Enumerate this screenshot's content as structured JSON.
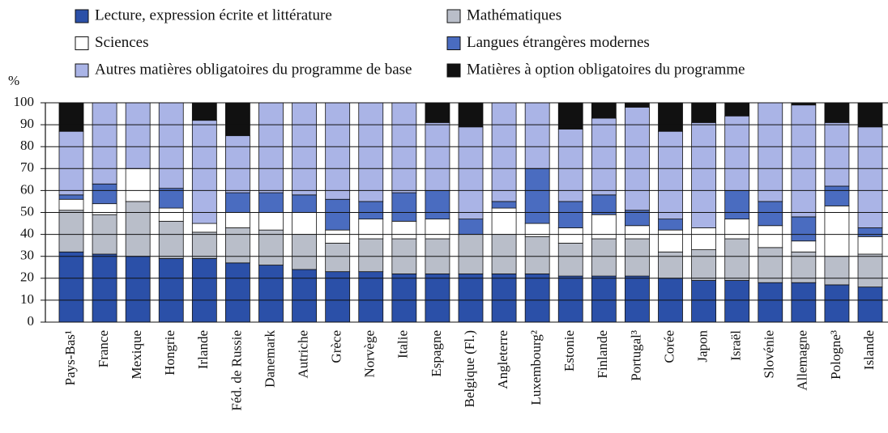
{
  "chart_data": {
    "type": "stacked_bar",
    "y_label": "%",
    "categories": [
      "Pays-Bas¹",
      "France",
      "Mexique",
      "Hongrie",
      "Irlande",
      "Féd. de Russie",
      "Danemark",
      "Autriche",
      "Grèce",
      "Norvège",
      "Italie",
      "Espagne",
      "Belgique (Fl.)",
      "Angleterre",
      "Luxembourg²",
      "Estonie",
      "Finlande",
      "Portugal³",
      "Corée",
      "Japon",
      "Israël",
      "Slovénie",
      "Allemagne",
      "Pologne³",
      "Islande"
    ],
    "series": [
      {
        "name": "Lecture, expression écrite et littérature",
        "color": "#2b50a8",
        "values": [
          32,
          31,
          30,
          29,
          29,
          27,
          26,
          24,
          23,
          23,
          22,
          22,
          22,
          22,
          22,
          21,
          21,
          21,
          20,
          19,
          19,
          18,
          18,
          17,
          16
        ]
      },
      {
        "name": "Mathématiques",
        "color": "#b9bec9",
        "values": [
          19,
          18,
          25,
          17,
          12,
          16,
          16,
          16,
          13,
          15,
          16,
          16,
          18,
          18,
          17,
          15,
          17,
          17,
          12,
          14,
          19,
          16,
          14,
          13,
          15
        ]
      },
      {
        "name": "Sciences",
        "color": "#ffffff",
        "values": [
          5,
          5,
          15,
          6,
          4,
          7,
          8,
          10,
          6,
          9,
          8,
          9,
          0,
          12,
          6,
          7,
          11,
          6,
          10,
          10,
          9,
          10,
          5,
          23,
          8
        ]
      },
      {
        "name": "Langues étrangères modernes",
        "color": "#4a6cc0",
        "values": [
          2,
          9,
          0,
          9,
          0,
          9,
          9,
          8,
          14,
          8,
          13,
          13,
          7,
          3,
          25,
          12,
          9,
          7,
          5,
          0,
          13,
          11,
          11,
          9,
          4
        ]
      },
      {
        "name": "Autres matières obligatoires du programme de base",
        "color": "#aab4e6",
        "values": [
          29,
          37,
          30,
          39,
          47,
          26,
          41,
          42,
          44,
          45,
          41,
          31,
          42,
          45,
          30,
          33,
          35,
          47,
          40,
          48,
          34,
          45,
          51,
          29,
          46
        ]
      },
      {
        "name": "Matières à option obligatoires du programme",
        "color": "#111111",
        "values": [
          13,
          0,
          0,
          0,
          8,
          15,
          0,
          0,
          0,
          0,
          0,
          9,
          11,
          0,
          0,
          12,
          7,
          2,
          13,
          9,
          6,
          0,
          1,
          9,
          11
        ]
      }
    ],
    "ylim": [
      0,
      100
    ],
    "yticks": [
      0,
      10,
      20,
      30,
      40,
      50,
      60,
      70,
      80,
      90,
      100
    ],
    "grid": true
  }
}
